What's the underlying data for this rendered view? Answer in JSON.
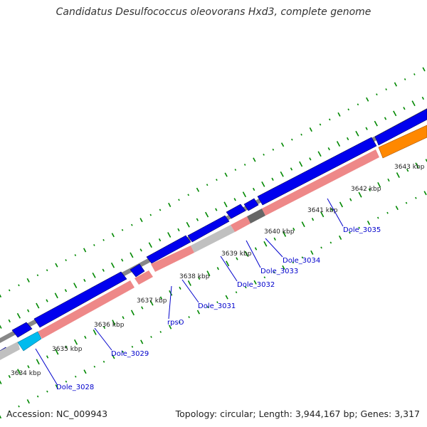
{
  "title": "Candidatus Desulfococcus oleovorans Hxd3, complete genome",
  "footer": {
    "accession": "Accession: NC_009943",
    "summary": "Topology: circular; Length: 3,944,167 bp; Genes: 3,317"
  },
  "colors": {
    "backbone": "#888888",
    "forward_cds": "#0000ee",
    "reverse_cds": "#ee8888",
    "reverse_other": "#c0c0c0",
    "trna": "#00bbee",
    "dark_gene": "#666666",
    "orange_gene": "#ff8800",
    "gc_ticks": "#008800",
    "labels": "#0000cc",
    "scale_text": "#222222"
  },
  "scale_labels": [
    "3634 kbp",
    "3635 kbp",
    "3636 kbp",
    "3637 kbp",
    "3638 kbp",
    "3639 kbp",
    "3640 kbp",
    "3641 kbp",
    "3642 kbp",
    "3643 kbp"
  ],
  "gene_labels": [
    "Dole_3028",
    "Dole_3029",
    "rpsO",
    "Dole_3031",
    "Dole_3032",
    "Dole_3033",
    "Dole_3034",
    "Dole_3035"
  ]
}
